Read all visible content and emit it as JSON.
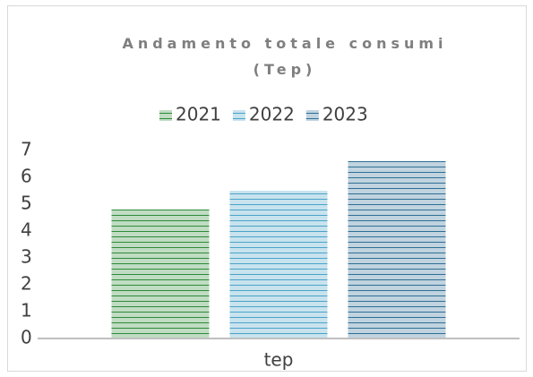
{
  "chart_data": {
    "type": "bar",
    "title": "Andamento totale consumi (Tep)",
    "categories": [
      "tep"
    ],
    "series": [
      {
        "name": "2021",
        "color": "#2e8b3a",
        "values": [
          4.8
        ]
      },
      {
        "name": "2022",
        "color": "#4aa3c8",
        "values": [
          5.5
        ]
      },
      {
        "name": "2023",
        "color": "#2f6f95",
        "values": [
          6.6
        ]
      }
    ],
    "ylim": [
      0,
      7
    ],
    "yticks": [
      0,
      1,
      2,
      3,
      4,
      5,
      6,
      7
    ],
    "grid": false,
    "legend": "top"
  }
}
